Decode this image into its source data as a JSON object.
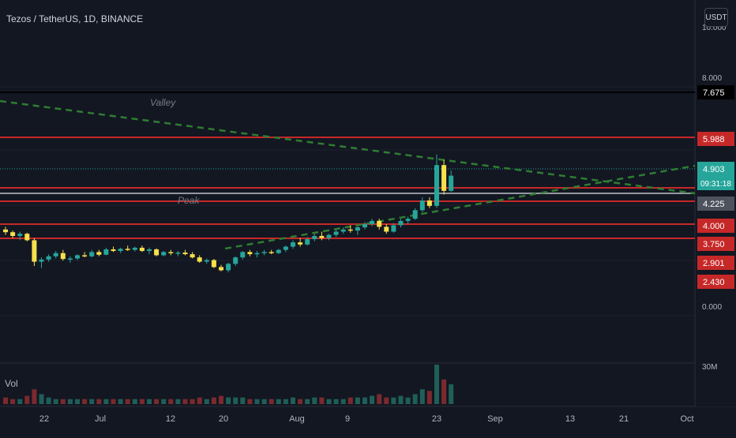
{
  "header": {
    "title": "Tezos / TetherUS, 1D, BINANCE"
  },
  "currency_button": "USDT",
  "colors": {
    "background": "#131722",
    "grid": "#1e222d",
    "up": "#26a69a",
    "down": "#f7e04b",
    "resistance": "#c62828",
    "trend": "#2e7d32",
    "text": "#b2b5be"
  },
  "chart_data": {
    "type": "candlestick",
    "title": "Tezos / TetherUS, 1D, BINANCE",
    "price_axis": {
      "ticks": [
        "10.000",
        "8.000",
        "0.000"
      ],
      "scale": "log"
    },
    "time_axis": {
      "ticks": [
        "22",
        "Jul",
        "12",
        "20",
        "Aug",
        "9",
        "23",
        "Sep",
        "13",
        "21",
        "Oct"
      ]
    },
    "price_labels": [
      {
        "value": "7.675",
        "style": "black"
      },
      {
        "value": "5.988",
        "style": "red"
      },
      {
        "value": "4.903",
        "style": "current",
        "countdown": "09:31:18"
      },
      {
        "value": "4.225",
        "style": "gray"
      },
      {
        "value": "4.000",
        "style": "red"
      },
      {
        "value": "3.750",
        "style": "red"
      },
      {
        "value": "2.901",
        "style": "red"
      },
      {
        "value": "2.430",
        "style": "red"
      }
    ],
    "horizontal_lines": [
      {
        "price": 7.675,
        "color": "black"
      },
      {
        "price": 5.988,
        "color": "red"
      },
      {
        "price": 4.5,
        "color": "red"
      },
      {
        "price": 4.35,
        "color": "red"
      },
      {
        "price": 4.225,
        "color": "red"
      },
      {
        "price": 3.55,
        "color": "red"
      },
      {
        "price": 3.38,
        "color": "red"
      },
      {
        "price": 4.903,
        "color": "dotted-teal"
      }
    ],
    "annotations": [
      "Valley",
      "Peak"
    ],
    "volume_label": "Vol",
    "volume_axis_tick": "30M",
    "candles": [
      [
        3.9,
        3.95,
        3.8,
        3.85
      ],
      [
        3.85,
        3.88,
        3.74,
        3.78
      ],
      [
        3.78,
        3.86,
        3.7,
        3.82
      ],
      [
        3.82,
        3.84,
        3.68,
        3.7
      ],
      [
        3.7,
        3.74,
        3.22,
        3.3
      ],
      [
        3.3,
        3.38,
        3.18,
        3.34
      ],
      [
        3.34,
        3.44,
        3.3,
        3.4
      ],
      [
        3.4,
        3.5,
        3.36,
        3.46
      ],
      [
        3.46,
        3.52,
        3.32,
        3.35
      ],
      [
        3.35,
        3.4,
        3.28,
        3.36
      ],
      [
        3.36,
        3.44,
        3.33,
        3.42
      ],
      [
        3.42,
        3.48,
        3.38,
        3.4
      ],
      [
        3.4,
        3.52,
        3.38,
        3.48
      ],
      [
        3.48,
        3.52,
        3.4,
        3.43
      ],
      [
        3.43,
        3.56,
        3.42,
        3.53
      ],
      [
        3.53,
        3.58,
        3.48,
        3.5
      ],
      [
        3.5,
        3.56,
        3.46,
        3.54
      ],
      [
        3.54,
        3.6,
        3.5,
        3.52
      ],
      [
        3.52,
        3.58,
        3.49,
        3.56
      ],
      [
        3.56,
        3.6,
        3.48,
        3.5
      ],
      [
        3.5,
        3.56,
        3.44,
        3.53
      ],
      [
        3.53,
        3.55,
        3.4,
        3.42
      ],
      [
        3.42,
        3.5,
        3.4,
        3.48
      ],
      [
        3.48,
        3.52,
        3.42,
        3.46
      ],
      [
        3.46,
        3.5,
        3.4,
        3.47
      ],
      [
        3.47,
        3.52,
        3.42,
        3.44
      ],
      [
        3.44,
        3.48,
        3.36,
        3.38
      ],
      [
        3.38,
        3.42,
        3.28,
        3.3
      ],
      [
        3.3,
        3.36,
        3.26,
        3.33
      ],
      [
        3.33,
        3.35,
        3.18,
        3.2
      ],
      [
        3.2,
        3.24,
        3.12,
        3.14
      ],
      [
        3.14,
        3.28,
        3.1,
        3.26
      ],
      [
        3.26,
        3.4,
        3.22,
        3.38
      ],
      [
        3.38,
        3.5,
        3.34,
        3.48
      ],
      [
        3.48,
        3.52,
        3.4,
        3.44
      ],
      [
        3.44,
        3.5,
        3.38,
        3.46
      ],
      [
        3.46,
        3.52,
        3.42,
        3.48
      ],
      [
        3.48,
        3.52,
        3.44,
        3.46
      ],
      [
        3.46,
        3.54,
        3.44,
        3.52
      ],
      [
        3.52,
        3.6,
        3.48,
        3.58
      ],
      [
        3.58,
        3.7,
        3.54,
        3.66
      ],
      [
        3.66,
        3.74,
        3.58,
        3.62
      ],
      [
        3.62,
        3.76,
        3.6,
        3.72
      ],
      [
        3.72,
        3.82,
        3.68,
        3.78
      ],
      [
        3.78,
        3.86,
        3.7,
        3.74
      ],
      [
        3.74,
        3.82,
        3.7,
        3.8
      ],
      [
        3.8,
        3.9,
        3.76,
        3.86
      ],
      [
        3.86,
        3.94,
        3.82,
        3.9
      ],
      [
        3.9,
        3.98,
        3.84,
        3.88
      ],
      [
        3.88,
        3.96,
        3.8,
        3.94
      ],
      [
        3.94,
        4.04,
        3.9,
        4.0
      ],
      [
        4.0,
        4.1,
        3.96,
        4.06
      ],
      [
        4.06,
        4.1,
        3.9,
        3.95
      ],
      [
        3.95,
        4.0,
        3.82,
        3.86
      ],
      [
        3.86,
        4.02,
        3.84,
        3.98
      ],
      [
        3.98,
        4.1,
        3.94,
        4.06
      ],
      [
        4.06,
        4.14,
        4.0,
        4.1
      ],
      [
        4.1,
        4.3,
        4.08,
        4.26
      ],
      [
        4.26,
        4.5,
        4.22,
        4.44
      ],
      [
        4.44,
        4.5,
        4.3,
        4.34
      ],
      [
        4.34,
        5.3,
        4.3,
        5.1
      ],
      [
        5.1,
        5.2,
        4.55,
        4.62
      ],
      [
        4.62,
        5.0,
        4.6,
        4.903
      ]
    ],
    "volume": [
      4,
      3,
      3,
      5,
      9,
      6,
      4,
      3,
      3,
      3,
      3,
      3,
      3,
      3,
      3,
      3,
      3,
      3,
      3,
      3,
      3,
      3,
      3,
      3,
      3,
      3,
      3,
      4,
      3,
      4,
      5,
      4,
      4,
      4,
      3,
      3,
      3,
      3,
      3,
      3,
      4,
      3,
      3,
      4,
      4,
      3,
      3,
      3,
      4,
      4,
      4,
      5,
      6,
      4,
      4,
      5,
      4,
      6,
      9,
      8,
      24,
      15,
      12
    ]
  }
}
